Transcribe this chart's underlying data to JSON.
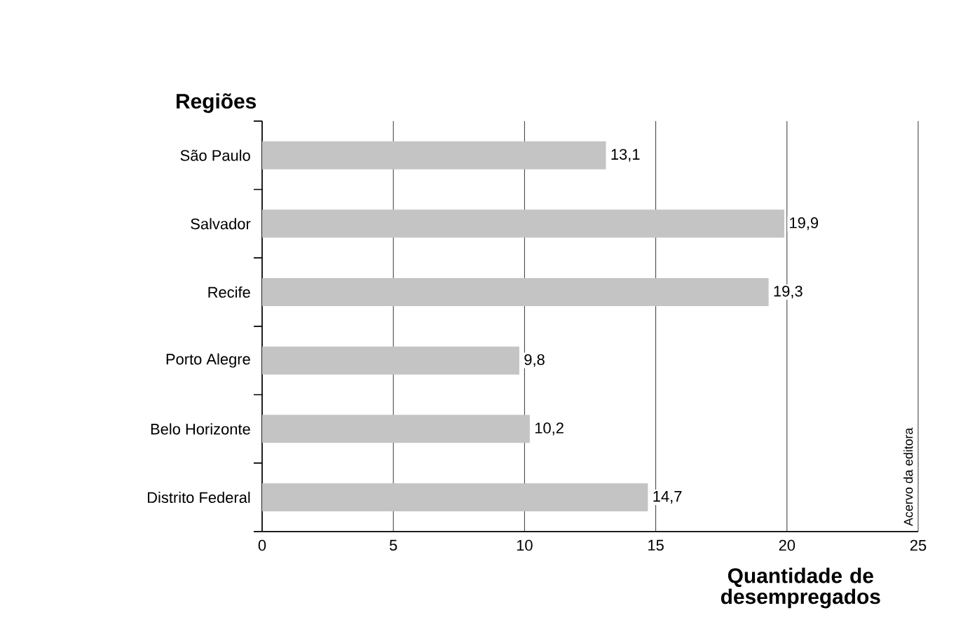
{
  "chart_data": {
    "type": "bar",
    "orientation": "horizontal",
    "ylabel": "Regiões",
    "xlabel": "Quantidade de desempregados",
    "categories": [
      "São Paulo",
      "Salvador",
      "Recife",
      "Porto Alegre",
      "Belo Horizonte",
      "Distrito Federal"
    ],
    "values": [
      13.1,
      19.9,
      19.3,
      9.8,
      10.2,
      14.7
    ],
    "value_labels": [
      "13,1",
      "19,9",
      "19,3",
      "9,8",
      "10,2",
      "14,7"
    ],
    "color": "#c4c4c4",
    "xlim": [
      0,
      25
    ],
    "xticks": [
      0,
      5,
      10,
      15,
      20,
      25
    ],
    "grid": "x",
    "annotations": [
      "Acervo da editora"
    ]
  }
}
